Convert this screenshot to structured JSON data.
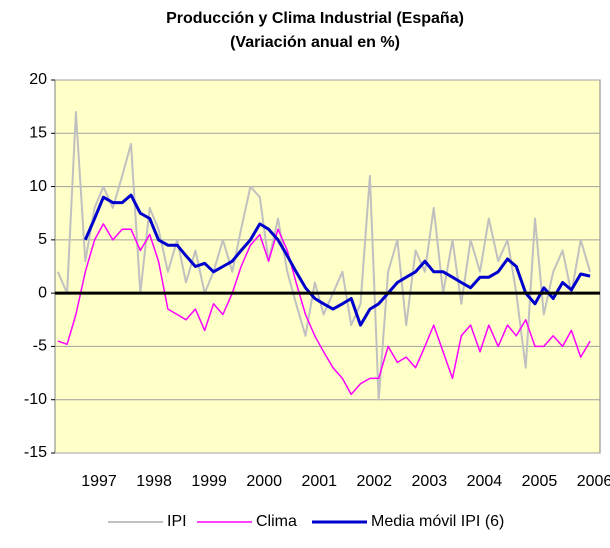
{
  "chart_data": {
    "type": "line",
    "title": "Producción y Clima Industrial (España)",
    "subtitle": "(Variación anual en %)",
    "x": [
      1996.25,
      1996.42,
      1996.58,
      1996.75,
      1996.92,
      1997.08,
      1997.25,
      1997.42,
      1997.58,
      1997.75,
      1997.92,
      1998.08,
      1998.25,
      1998.42,
      1998.58,
      1998.75,
      1998.92,
      1999.08,
      1999.25,
      1999.42,
      1999.58,
      1999.75,
      1999.92,
      2000.08,
      2000.25,
      2000.42,
      2000.58,
      2000.75,
      2000.92,
      2001.08,
      2001.25,
      2001.42,
      2001.58,
      2001.75,
      2001.92,
      2002.08,
      2002.25,
      2002.42,
      2002.58,
      2002.75,
      2002.92,
      2003.08,
      2003.25,
      2003.42,
      2003.58,
      2003.75,
      2003.92,
      2004.08,
      2004.25,
      2004.42,
      2004.58,
      2004.75,
      2004.92,
      2005.08,
      2005.25,
      2005.42,
      2005.58,
      2005.75,
      2005.92
    ],
    "series": [
      {
        "name": "IPI",
        "color": "#c0c0c0",
        "values": [
          2,
          0,
          17,
          3,
          8,
          10,
          8,
          11,
          14,
          0,
          8,
          6,
          2,
          5,
          1,
          4,
          0,
          2,
          5,
          2,
          6,
          10,
          9,
          3,
          7,
          2,
          -1,
          -4,
          1,
          -2,
          0,
          2,
          -3,
          -1,
          11,
          -10,
          2,
          5,
          -3,
          4,
          2,
          8,
          0,
          5,
          -1,
          5,
          2,
          7,
          3,
          5,
          0,
          -7,
          7,
          -2,
          2,
          4,
          0,
          5,
          2
        ]
      },
      {
        "name": "Clima",
        "color": "#ff00ff",
        "values": [
          -4.5,
          -4.8,
          -2,
          2,
          5,
          6.5,
          5,
          6,
          6,
          4,
          5.5,
          3,
          -1.5,
          -2,
          -2.5,
          -1.5,
          -3.5,
          -1,
          -2,
          0,
          2.5,
          4.5,
          5.5,
          3,
          6,
          4,
          1,
          -2,
          -4,
          -5.5,
          -7,
          -8,
          -9.5,
          -8.5,
          -8,
          -8,
          -5,
          -6.5,
          -6,
          -7,
          -5,
          -3,
          -5.5,
          -8,
          -4,
          -3,
          -5.5,
          -3,
          -5,
          -3,
          -4,
          -2.5,
          -5,
          -5,
          -4,
          -5,
          -3.5,
          -6,
          -4.5
        ]
      },
      {
        "name": "Media móvil IPI (6)",
        "color": "#0000cc",
        "values": [
          null,
          null,
          null,
          5,
          7,
          9,
          8.5,
          8.5,
          9.2,
          7.5,
          7,
          5,
          4.5,
          4.5,
          3.5,
          2.5,
          2.8,
          2,
          2.5,
          3,
          4,
          5,
          6.5,
          6,
          5,
          3.5,
          2,
          0.5,
          -0.5,
          -1,
          -1.5,
          -1,
          -0.5,
          -3,
          -1.5,
          -1,
          0,
          1,
          1.5,
          2,
          3,
          2,
          2,
          1.5,
          1,
          0.5,
          1.5,
          1.5,
          2,
          3.2,
          2.5,
          0,
          -1,
          0.5,
          -0.5,
          1,
          0.3,
          1.8,
          1.6
        ]
      }
    ],
    "xlim": [
      1996.2,
      2006.1
    ],
    "xticks": [
      1997,
      1998,
      1999,
      2000,
      2001,
      2002,
      2003,
      2004,
      2005,
      2006
    ],
    "ylim": [
      -15,
      20
    ],
    "yticks": [
      -15,
      -10,
      -5,
      0,
      5,
      10,
      15,
      20
    ],
    "grid": true,
    "legend": "bottom"
  }
}
